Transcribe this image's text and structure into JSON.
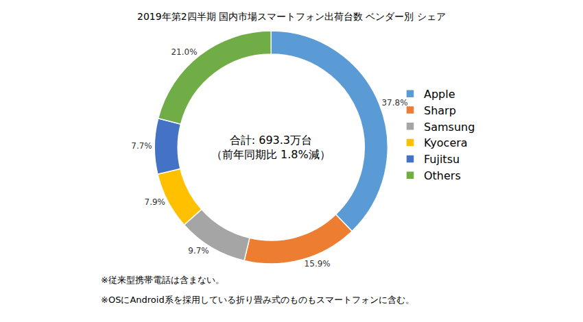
{
  "chart_data": {
    "type": "pie",
    "title": "2019年第2四半期 国内市場スマートフォン出荷台数 ベンダー別 シェア",
    "categories": [
      "Apple",
      "Sharp",
      "Samsung",
      "Kyocera",
      "Fujitsu",
      "Others"
    ],
    "values": [
      37.8,
      15.9,
      9.7,
      7.9,
      7.7,
      21.0
    ],
    "value_labels": [
      "37.8%",
      "15.9%",
      "9.7%",
      "7.9%",
      "7.7%",
      "21.0%"
    ],
    "colors": [
      "#5B9BD5",
      "#ED7D31",
      "#A5A5A5",
      "#FFC000",
      "#4472C4",
      "#70AD47"
    ],
    "data_labels": true,
    "legend": "right",
    "annotations": {
      "center": [
        "合計: 693.3万台",
        "（前年同期比 1.8%減）"
      ],
      "footnotes": [
        "※従来型携帯電話は含まない。",
        "※OSにAndroid系を採用している折り畳み式のものもスマートフォンに含む。"
      ]
    }
  }
}
